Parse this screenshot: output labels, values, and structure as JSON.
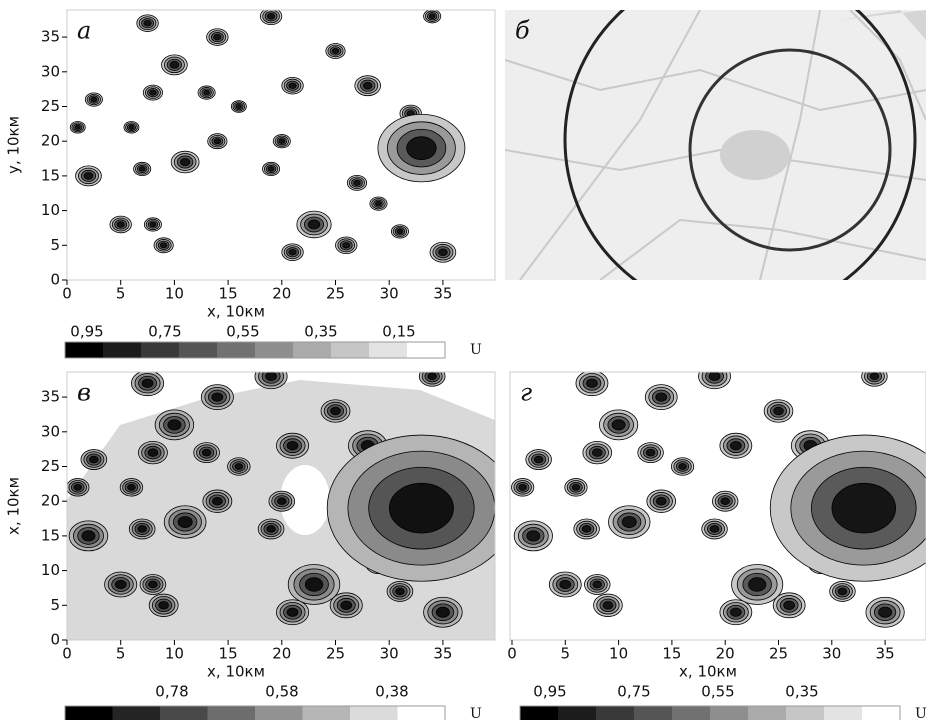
{
  "panels": [
    {
      "letter": "а",
      "x_label": "x, 10км",
      "y_label": "y, 10км",
      "xticks": [
        0,
        5,
        10,
        15,
        20,
        25,
        30,
        35
      ],
      "yticks": [
        0,
        5,
        10,
        15,
        20,
        25,
        30,
        35
      ]
    },
    {
      "letter": "б"
    },
    {
      "letter": "в",
      "x_label": "x, 10км",
      "y_label": "x, 10км",
      "xticks": [
        0,
        5,
        10,
        15,
        20,
        25,
        30,
        35
      ],
      "yticks": [
        0,
        5,
        10,
        15,
        20,
        25,
        30,
        35
      ]
    },
    {
      "letter": "г",
      "x_label": "x, 10км",
      "xticks": [
        0,
        5,
        10,
        15,
        20,
        25,
        30,
        35
      ]
    }
  ],
  "colorbars": [
    {
      "labels": [
        "0,95",
        "0,75",
        "0,55",
        "0,35",
        "0,15"
      ],
      "unit": "U"
    },
    {
      "labels": [
        "0,78",
        "0,58",
        "0,38"
      ],
      "unit": "U"
    },
    {
      "labels": [
        "0,95",
        "0,75",
        "0,55",
        "0,35"
      ],
      "unit": "U"
    }
  ]
}
